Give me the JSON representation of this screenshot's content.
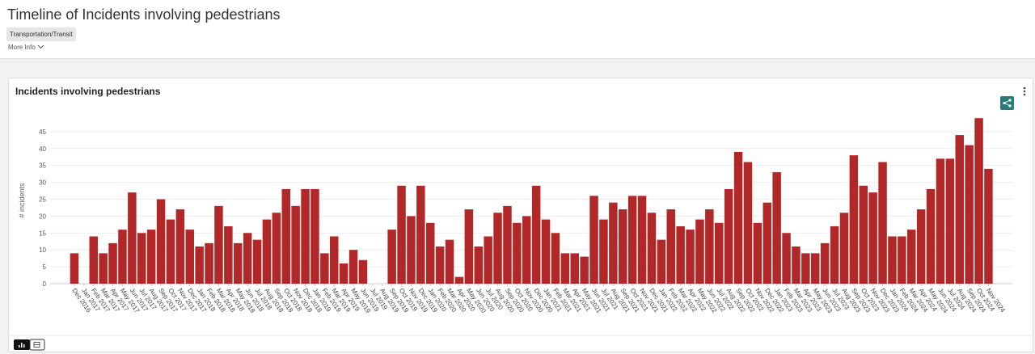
{
  "header": {
    "title": "Timeline of Incidents involving pedestrians",
    "tag": "Transportation/Transit",
    "more_info": "More Info"
  },
  "chart_data": {
    "type": "bar",
    "title": "Incidents involving pedestrians",
    "y_label": "# incidents",
    "color": "#b22727",
    "grid": true,
    "categories": [
      "Dec 2016",
      "Jan 2017",
      "Feb 2017",
      "Mar 2017",
      "Apr 2017",
      "May 2017",
      "Jun 2017",
      "Jul 2017",
      "Aug 2017",
      "Sep 2017",
      "Oct 2017",
      "Nov 2017",
      "Dec 2017",
      "Jan 2018",
      "Feb 2018",
      "Mar 2018",
      "Apr 2018",
      "May 2018",
      "Jun 2018",
      "Jul 2018",
      "Aug 2018",
      "Sep 2018",
      "Oct 2018",
      "Nov 2018",
      "Dec 2018",
      "Jan 2019",
      "Feb 2019",
      "Mar 2019",
      "Apr 2019",
      "May 2019",
      "Jun 2019",
      "Jul 2019",
      "Aug 2019",
      "Sep 2019",
      "Oct 2019",
      "Nov 2019",
      "Dec 2019",
      "Jan 2020",
      "Feb 2020",
      "Mar 2020",
      "Apr 2020",
      "May 2020",
      "Jun 2020",
      "Jul 2020",
      "Aug 2020",
      "Sep 2020",
      "Oct 2020",
      "Nov 2020",
      "Dec 2020",
      "Jan 2021",
      "Feb 2021",
      "Mar 2021",
      "Apr 2021",
      "May 2021",
      "Jun 2021",
      "Jul 2021",
      "Aug 2021",
      "Sep 2021",
      "Oct 2021",
      "Nov 2021",
      "Dec 2021",
      "Jan 2022",
      "Feb 2022",
      "Mar 2022",
      "Apr 2022",
      "May 2022",
      "Jun 2022",
      "Jul 2022",
      "Aug 2022",
      "Sep 2022",
      "Oct 2022",
      "Nov 2022",
      "Dec 2022",
      "Jan 2023",
      "Feb 2023",
      "Mar 2023",
      "Apr 2023",
      "May 2023",
      "Jun 2023",
      "Jul 2023",
      "Aug 2023",
      "Sep 2023",
      "Oct 2023",
      "Nov 2023",
      "Dec 2023",
      "Jan 2024",
      "Feb 2024",
      "Mar 2024",
      "Apr 2024",
      "May 2024",
      "Jun 2024",
      "Jul 2024",
      "Aug 2024",
      "Sep 2024",
      "Oct 2024",
      "Nov 2024"
    ],
    "values": [
      9,
      0,
      14,
      9,
      12,
      16,
      27,
      15,
      16,
      25,
      19,
      22,
      16,
      11,
      12,
      23,
      17,
      12,
      15,
      13,
      19,
      21,
      28,
      23,
      28,
      28,
      9,
      14,
      6,
      10,
      7,
      0,
      0,
      16,
      29,
      20,
      29,
      18,
      11,
      13,
      2,
      22,
      11,
      14,
      21,
      23,
      18,
      20,
      29,
      19,
      15,
      9,
      9,
      8,
      26,
      19,
      24,
      22,
      26,
      26,
      21,
      13,
      22,
      17,
      16,
      19,
      22,
      18,
      28,
      39,
      36,
      18,
      24,
      33,
      15,
      11,
      9,
      9,
      12,
      17,
      21,
      38,
      29,
      27,
      36,
      14,
      14,
      16,
      22,
      28,
      37,
      37,
      44,
      41,
      49,
      34
    ],
    "ylim": [
      0,
      50
    ],
    "yticks": [
      0,
      5,
      10,
      15,
      20,
      25,
      30,
      35,
      40,
      45
    ]
  }
}
